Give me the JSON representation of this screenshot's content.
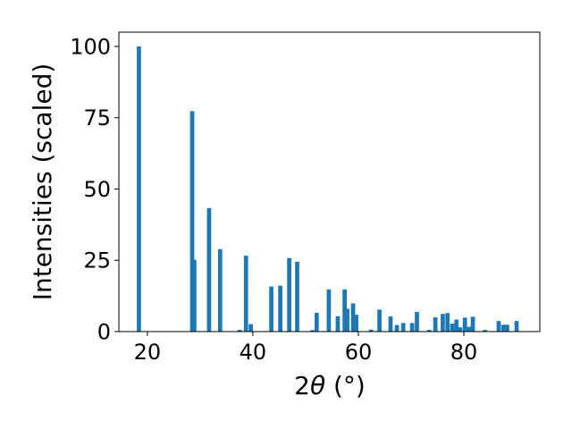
{
  "chart_data": {
    "type": "bar",
    "xlabel_prefix": "2",
    "xlabel_symbol": "θ",
    "xlabel_unit": " (°)",
    "ylabel": "Intensities (scaled)",
    "title": "",
    "xlim": [
      14.6,
      94.4
    ],
    "ylim": [
      0,
      105
    ],
    "xticks": [
      20,
      40,
      60,
      80
    ],
    "yticks": [
      0,
      25,
      50,
      75,
      100
    ],
    "bar_width_deg": 0.8,
    "bar_color": "#1f77b4",
    "grid": false,
    "legend": "none",
    "x": [
      18.4,
      28.5,
      28.9,
      31.7,
      33.8,
      37.5,
      38.7,
      39.6,
      43.5,
      45.2,
      46.9,
      48.4,
      51.3,
      52.1,
      54.4,
      56.1,
      57.4,
      57.9,
      59.0,
      59.6,
      62.4,
      64.0,
      66.1,
      67.3,
      68.5,
      70.2,
      71.1,
      73.4,
      74.6,
      76.0,
      76.9,
      77.8,
      78.6,
      79.3,
      80.2,
      81.0,
      81.7,
      84.0,
      86.6,
      87.5,
      88.2,
      90.0
    ],
    "values": [
      100,
      77.3,
      25.2,
      43.3,
      28.9,
      0.6,
      26.6,
      2.6,
      15.8,
      16.1,
      25.8,
      24.5,
      0.5,
      6.6,
      14.8,
      5.4,
      14.8,
      8.0,
      9.9,
      5.9,
      0.7,
      7.7,
      5.3,
      2.3,
      3.0,
      3.0,
      6.9,
      0.6,
      5.0,
      6.2,
      6.5,
      2.8,
      4.2,
      1.5,
      4.9,
      1.7,
      5.2,
      0.6,
      3.7,
      2.4,
      2.4,
      3.7
    ]
  }
}
